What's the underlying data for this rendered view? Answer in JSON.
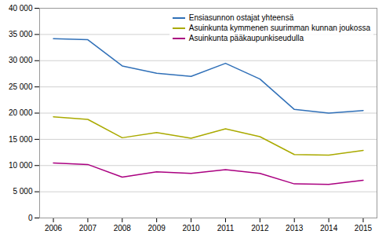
{
  "chart_data": {
    "type": "line",
    "x": [
      2006,
      2007,
      2008,
      2009,
      2010,
      2011,
      2012,
      2013,
      2014,
      2015
    ],
    "series": [
      {
        "name": "Ensiasunnon ostajat yhteensä",
        "color": "#3070B8",
        "values": [
          34200,
          34000,
          29000,
          27600,
          27000,
          29500,
          26500,
          20700,
          20000,
          20500
        ]
      },
      {
        "name": "Asuinkunta kymmenen suurimman kunnan joukossa",
        "color": "#AAAA00",
        "values": [
          19300,
          18800,
          15300,
          16300,
          15200,
          17000,
          15500,
          12100,
          12000,
          12900
        ]
      },
      {
        "name": "Asuinkunta pääkaupunkiseudulla",
        "color": "#AA0080",
        "values": [
          10500,
          10200,
          7800,
          8800,
          8500,
          9200,
          8500,
          6500,
          6400,
          7200
        ]
      }
    ],
    "xlim": [
      2005.6,
      2015.4
    ],
    "xticks": [
      2006,
      2007,
      2008,
      2009,
      2010,
      2011,
      2012,
      2013,
      2014,
      2015
    ],
    "ylim": [
      0,
      40000
    ],
    "yticks": [
      0,
      {
        "value": 5000,
        "label": "5 000"
      },
      {
        "value": 10000,
        "label": "10 000"
      },
      {
        "value": 15000,
        "label": "15 000"
      },
      {
        "value": 20000,
        "label": "20 000"
      },
      {
        "value": 25000,
        "label": "25 000"
      },
      {
        "value": 30000,
        "label": "30 000"
      },
      {
        "value": 35000,
        "label": "35 000"
      },
      {
        "value": 40000,
        "label": "40 000"
      }
    ],
    "grid": true,
    "legend": "upper right"
  }
}
